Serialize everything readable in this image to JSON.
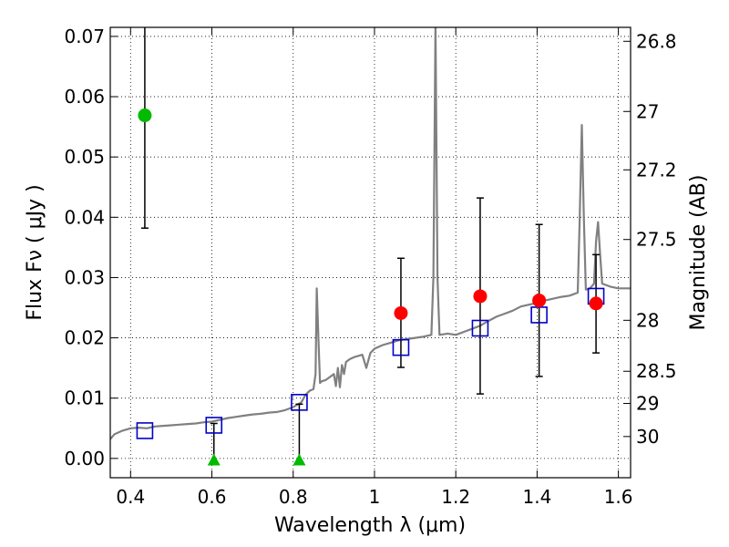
{
  "chart_data": {
    "type": "scatter",
    "xlabel": "Wavelength  λ (μm)",
    "ylabel": "Flux  Fν  ( μJy )",
    "y2label": "Magnitude (AB)",
    "xlim": [
      0.35,
      1.63
    ],
    "ylim": [
      -0.0032,
      0.0715
    ],
    "grid": true,
    "x_ticks": [
      {
        "value": 0.4,
        "label": "0.4"
      },
      {
        "value": 0.6,
        "label": "0.6"
      },
      {
        "value": 0.8,
        "label": "0.8"
      },
      {
        "value": 1.0,
        "label": "1"
      },
      {
        "value": 1.2,
        "label": "1.2"
      },
      {
        "value": 1.4,
        "label": "1.4"
      },
      {
        "value": 1.6,
        "label": "1.6"
      }
    ],
    "y_ticks": [
      {
        "value": 0.0,
        "label": "0.00"
      },
      {
        "value": 0.01,
        "label": "0.01"
      },
      {
        "value": 0.02,
        "label": "0.02"
      },
      {
        "value": 0.03,
        "label": "0.03"
      },
      {
        "value": 0.04,
        "label": "0.04"
      },
      {
        "value": 0.05,
        "label": "0.05"
      },
      {
        "value": 0.06,
        "label": "0.06"
      },
      {
        "value": 0.07,
        "label": "0.07"
      }
    ],
    "y2_ticks": [
      {
        "value": 26.8,
        "label": "26.8"
      },
      {
        "value": 27.0,
        "label": "27"
      },
      {
        "value": 27.2,
        "label": "27.2"
      },
      {
        "value": 27.5,
        "label": "27.5"
      },
      {
        "value": 28.0,
        "label": "28"
      },
      {
        "value": 28.5,
        "label": "28.5"
      },
      {
        "value": 29.0,
        "label": "29"
      },
      {
        "value": 30.0,
        "label": "30"
      }
    ],
    "colors": {
      "spectrum": "#808080",
      "model": "#0000cc",
      "detection": "#ff0000",
      "optical": "#00bb00",
      "errorbar": "#000000"
    },
    "spectrum": [
      [
        0.35,
        0.0032
      ],
      [
        0.36,
        0.004
      ],
      [
        0.38,
        0.0046
      ],
      [
        0.4,
        0.005
      ],
      [
        0.42,
        0.0051
      ],
      [
        0.44,
        0.005
      ],
      [
        0.46,
        0.0053
      ],
      [
        0.48,
        0.0054
      ],
      [
        0.5,
        0.0055
      ],
      [
        0.52,
        0.0056
      ],
      [
        0.54,
        0.0057
      ],
      [
        0.56,
        0.0058
      ],
      [
        0.58,
        0.006
      ],
      [
        0.6,
        0.0061
      ],
      [
        0.62,
        0.0064
      ],
      [
        0.64,
        0.0067
      ],
      [
        0.66,
        0.0069
      ],
      [
        0.68,
        0.0071
      ],
      [
        0.7,
        0.0073
      ],
      [
        0.72,
        0.0074
      ],
      [
        0.74,
        0.0076
      ],
      [
        0.76,
        0.0077
      ],
      [
        0.78,
        0.008
      ],
      [
        0.8,
        0.0085
      ],
      [
        0.82,
        0.0093
      ],
      [
        0.83,
        0.0105
      ],
      [
        0.84,
        0.0112
      ],
      [
        0.85,
        0.0115
      ],
      [
        0.855,
        0.014
      ],
      [
        0.858,
        0.0282
      ],
      [
        0.862,
        0.02
      ],
      [
        0.866,
        0.0125
      ],
      [
        0.87,
        0.0128
      ],
      [
        0.88,
        0.013
      ],
      [
        0.89,
        0.0135
      ],
      [
        0.9,
        0.014
      ],
      [
        0.905,
        0.012
      ],
      [
        0.91,
        0.015
      ],
      [
        0.915,
        0.0118
      ],
      [
        0.92,
        0.0155
      ],
      [
        0.925,
        0.014
      ],
      [
        0.93,
        0.016
      ],
      [
        0.94,
        0.0165
      ],
      [
        0.95,
        0.0168
      ],
      [
        0.96,
        0.017
      ],
      [
        0.97,
        0.0172
      ],
      [
        0.98,
        0.015
      ],
      [
        0.99,
        0.0175
      ],
      [
        1.0,
        0.0182
      ],
      [
        1.02,
        0.0188
      ],
      [
        1.04,
        0.0192
      ],
      [
        1.06,
        0.0196
      ],
      [
        1.08,
        0.0198
      ],
      [
        1.1,
        0.02
      ],
      [
        1.12,
        0.0202
      ],
      [
        1.14,
        0.0205
      ],
      [
        1.145,
        0.03
      ],
      [
        1.15,
        0.072
      ],
      [
        1.155,
        0.03
      ],
      [
        1.16,
        0.0205
      ],
      [
        1.18,
        0.0207
      ],
      [
        1.2,
        0.0205
      ],
      [
        1.22,
        0.021
      ],
      [
        1.24,
        0.0215
      ],
      [
        1.26,
        0.022
      ],
      [
        1.28,
        0.0228
      ],
      [
        1.3,
        0.0235
      ],
      [
        1.32,
        0.024
      ],
      [
        1.34,
        0.0245
      ],
      [
        1.36,
        0.0252
      ],
      [
        1.38,
        0.0255
      ],
      [
        1.4,
        0.0258
      ],
      [
        1.42,
        0.0262
      ],
      [
        1.44,
        0.0265
      ],
      [
        1.46,
        0.0268
      ],
      [
        1.48,
        0.027
      ],
      [
        1.5,
        0.0275
      ],
      [
        1.505,
        0.04
      ],
      [
        1.51,
        0.0553
      ],
      [
        1.515,
        0.04
      ],
      [
        1.52,
        0.028
      ],
      [
        1.53,
        0.0282
      ],
      [
        1.54,
        0.029
      ],
      [
        1.545,
        0.036
      ],
      [
        1.55,
        0.0392
      ],
      [
        1.555,
        0.034
      ],
      [
        1.56,
        0.029
      ],
      [
        1.58,
        0.0285
      ],
      [
        1.6,
        0.0282
      ],
      [
        1.63,
        0.0282
      ]
    ],
    "model_points": [
      {
        "x": 0.435,
        "y": 0.0046
      },
      {
        "x": 0.605,
        "y": 0.0055
      },
      {
        "x": 0.815,
        "y": 0.0093
      },
      {
        "x": 1.065,
        "y": 0.0184
      },
      {
        "x": 1.26,
        "y": 0.0216
      },
      {
        "x": 1.405,
        "y": 0.0238
      },
      {
        "x": 1.545,
        "y": 0.0269
      }
    ],
    "detections": [
      {
        "x": 1.065,
        "y": 0.0241,
        "lo": 0.0151,
        "hi": 0.0332
      },
      {
        "x": 1.26,
        "y": 0.0269,
        "lo": 0.0107,
        "hi": 0.0432
      },
      {
        "x": 1.405,
        "y": 0.0262,
        "lo": 0.0136,
        "hi": 0.0388
      },
      {
        "x": 1.545,
        "y": 0.0257,
        "lo": 0.0175,
        "hi": 0.0338
      }
    ],
    "optical_point": {
      "x": 0.435,
      "y": 0.0569,
      "lo": 0.0382,
      "hi": 0.0715
    },
    "upper_limits": [
      {
        "x": 0.605,
        "y": -0.0004,
        "hi": 0.0058
      },
      {
        "x": 0.815,
        "y": -0.0004,
        "hi": 0.009
      }
    ]
  }
}
